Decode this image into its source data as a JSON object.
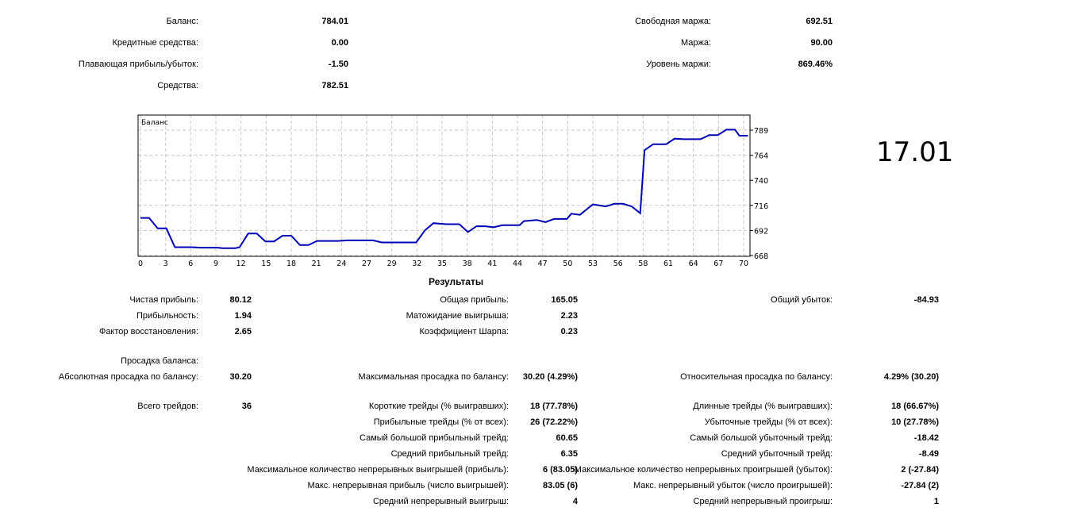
{
  "account": {
    "balance_label": "Баланс:",
    "balance": "784.01",
    "credit_label": "Кредитные средства:",
    "credit": "0.00",
    "floating_label": "Плавающая прибыль/убыток:",
    "floating": "-1.50",
    "equity_label": "Средства:",
    "equity": "782.51",
    "free_margin_label": "Свободная маржа:",
    "free_margin": "692.51",
    "margin_label": "Маржа:",
    "margin": "90.00",
    "margin_level_label": "Уровень маржи:",
    "margin_level": "869.46%"
  },
  "big_value": "17.01",
  "chart_data": {
    "type": "line",
    "title": "Баланс",
    "x_tick_labels": [
      "0",
      "3",
      "6",
      "9",
      "12",
      "15",
      "18",
      "21",
      "24",
      "27",
      "29",
      "32",
      "35",
      "38",
      "41",
      "44",
      "47",
      "50",
      "53",
      "56",
      "58",
      "61",
      "64",
      "67",
      "70"
    ],
    "y_ticks": [
      668,
      692,
      716,
      740,
      764,
      789
    ],
    "ylim": [
      668,
      800
    ],
    "xlim": [
      0,
      71
    ],
    "grid": true,
    "line_color": "#0000b4",
    "series": [
      {
        "name": "Баланс",
        "x": [
          0,
          1,
          2,
          3,
          4,
          6,
          7,
          9,
          9.5,
          11,
          11.5,
          12.5,
          13.5,
          14.5,
          15.5,
          16.5,
          17.5,
          18.5,
          19.5,
          20.5,
          23,
          24,
          27,
          28,
          32,
          33,
          34,
          35.5,
          37,
          38,
          39,
          40,
          41,
          42,
          44,
          44.5,
          46,
          47,
          48,
          49.5,
          50,
          51,
          52.5,
          54,
          55,
          56,
          57,
          58,
          58.5,
          59.5,
          61,
          62,
          63,
          65,
          66,
          67,
          68,
          69,
          69.5,
          70.5
        ],
        "y": [
          704,
          704,
          694,
          694,
          676,
          676,
          675.5,
          675.5,
          675,
          675,
          676,
          689,
          689,
          681.5,
          681.5,
          687,
          687,
          678,
          678,
          682,
          682,
          682.5,
          682.5,
          680.5,
          680.5,
          692,
          699,
          698,
          698,
          690.5,
          696,
          696,
          695,
          697,
          697,
          701,
          702,
          700,
          703,
          703,
          708,
          707,
          717,
          715,
          717.5,
          717.5,
          715,
          708.5,
          769,
          775,
          775,
          780.5,
          780,
          780,
          784,
          784,
          789.5,
          789.5,
          783.5,
          783.5
        ]
      }
    ]
  },
  "results": {
    "title": "Результаты",
    "net_profit_label": "Чистая прибыль:",
    "net_profit": "80.12",
    "gross_profit_label": "Общая прибыль:",
    "gross_profit": "165.05",
    "gross_loss_label": "Общий убыток:",
    "gross_loss": "-84.93",
    "profit_factor_label": "Прибыльность:",
    "profit_factor": "1.94",
    "expected_payoff_label": "Матожидание выигрыша:",
    "expected_payoff": "2.23",
    "recovery_factor_label": "Фактор восстановления:",
    "recovery_factor": "2.65",
    "sharpe_label": "Коэффициент Шарпа:",
    "sharpe": "0.23",
    "drawdown_header": "Просадка баланса:",
    "abs_dd_label": "Абсолютная просадка по балансу:",
    "abs_dd": "30.20",
    "max_dd_label": "Максимальная просадка по балансу:",
    "max_dd": "30.20 (4.29%)",
    "rel_dd_label": "Относительная просадка по балансу:",
    "rel_dd": "4.29% (30.20)",
    "total_trades_label": "Всего трейдов:",
    "total_trades": "36",
    "short_label": "Короткие трейды (% выигравших):",
    "short": "18 (77.78%)",
    "long_label": "Длинные трейды (% выигравших):",
    "long": "18 (66.67%)",
    "profit_trades_label": "Прибыльные трейды (% от всех):",
    "profit_trades": "26 (72.22%)",
    "loss_trades_label": "Убыточные трейды (% от всех):",
    "loss_trades": "10 (27.78%)",
    "largest_profit_label": "Самый большой прибыльный трейд:",
    "largest_profit": "60.65",
    "largest_loss_label": "Самый большой убыточный трейд:",
    "largest_loss": "-18.42",
    "avg_profit_label": "Средний прибыльный трейд:",
    "avg_profit": "6.35",
    "avg_loss_label": "Средний убыточный трейд:",
    "avg_loss": "-8.49",
    "max_cons_wins_label": "Максимальное количество непрерывных выигрышей (прибыль):",
    "max_cons_wins": "6 (83.05)",
    "max_cons_losses_label": "Максимальное количество непрерывных проигрышей (убыток):",
    "max_cons_losses": "2 (-27.84)",
    "max_cons_profit_label": "Макс. непрерывная прибыль (число выигрышей):",
    "max_cons_profit": "83.05 (6)",
    "max_cons_loss_label": "Макс. непрерывный убыток (число проигрышей):",
    "max_cons_loss": "-27.84 (2)",
    "avg_cons_wins_label": "Средний непрерывный выигрыш:",
    "avg_cons_wins": "4",
    "avg_cons_losses_label": "Средний непрерывный проигрыш:",
    "avg_cons_losses": "1"
  }
}
